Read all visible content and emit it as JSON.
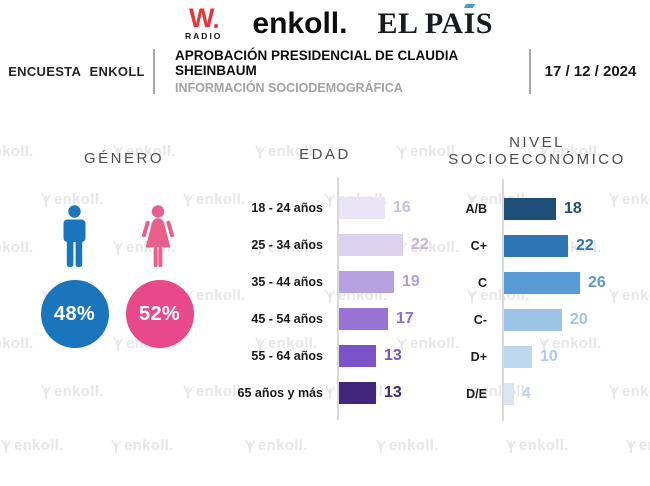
{
  "header": {
    "logos": {
      "wradio": {
        "w": "W",
        "radio": "RADIO",
        "red": "#e2373b"
      },
      "enkoll": "enkoll.",
      "elpais": {
        "full": "EL PAÍS",
        "before": "EL PA",
        "i": "I",
        "after": "S",
        "accent_color": "#4a9bd4"
      }
    },
    "band": {
      "left_label": "ENCUESTA ENKOLL",
      "title": "APROBACIÓN PRESIDENCIAL DE CLAUDIA SHEINBAUM",
      "subtitle": "INFORMACIÓN SOCIODEMOGRÁFICA",
      "date": "17 / 12 / 2024"
    }
  },
  "watermark": {
    "label": "enkoll.",
    "icon": "enkoll-sprout-icon",
    "color": "#e7e7ea"
  },
  "icons": {
    "male": "male-icon",
    "female": "female-icon"
  },
  "chart_data": [
    {
      "type": "pictogram",
      "title": "GÉNERO",
      "items": [
        {
          "icon": "male-icon",
          "label": "48%",
          "value": 48,
          "color": "#1b75bc",
          "icon_color": "#1b75bc"
        },
        {
          "icon": "female-icon",
          "label": "52%",
          "value": 52,
          "color": "#e8498b",
          "icon_color": "#e8618d"
        }
      ]
    },
    {
      "type": "bar",
      "orientation": "horizontal",
      "title": "EDAD",
      "categories": [
        "18 - 24 años",
        "25 - 34 años",
        "35 - 44 años",
        "45 - 54 años",
        "55 - 64 años",
        "65 años y más"
      ],
      "values": [
        16,
        22,
        19,
        17,
        13,
        13
      ],
      "bar_colors": [
        "#e9e4f6",
        "#dcd2f0",
        "#b6a2e0",
        "#9673d4",
        "#7b52c8",
        "#42267e"
      ],
      "label_colors": [
        "#c7c0de",
        "#c3b2e6",
        "#b29ddf",
        "#8f6ed2",
        "#7a52c8",
        "#3d2579"
      ],
      "xlim": [
        0,
        26
      ],
      "grid": false,
      "axis_line_color": "#d9d9d9"
    },
    {
      "type": "bar",
      "orientation": "horizontal",
      "title": "NIVEL SOCIOECONÓMICO",
      "title_lines": [
        "NIVEL",
        "SOCIOECONÓMICO"
      ],
      "categories": [
        "A/B",
        "C+",
        "C",
        "C-",
        "D+",
        "D/E"
      ],
      "values": [
        18,
        22,
        26,
        20,
        10,
        4
      ],
      "bar_colors": [
        "#1f4e79",
        "#2e75b6",
        "#5b9bd5",
        "#9dc3e6",
        "#bdd7ee",
        "#dae6f4"
      ],
      "label_colors": [
        "#1f4e79",
        "#2e75b6",
        "#5b9bd5",
        "#9dc3e6",
        "#aecbe8",
        "#bdd2ea"
      ],
      "xlim": [
        0,
        26
      ],
      "grid": false,
      "axis_line_color": "#d9d9d9"
    }
  ]
}
